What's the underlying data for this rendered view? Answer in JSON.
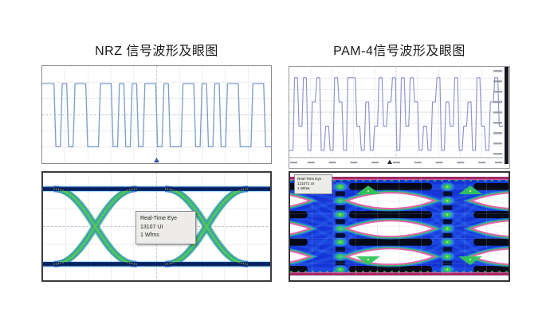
{
  "page": {
    "background": "#ffffff"
  },
  "panels": {
    "nrz": {
      "title": "NRZ 信号波形及眼图",
      "eye_tooltip": {
        "line1": "Real-Time Eye",
        "line2": "13107 UI",
        "line3": "1 Wfms"
      }
    },
    "pam4": {
      "title": "PAM-4信号波形及眼图",
      "eye_label": {
        "line1": "Real-Time Eye",
        "line2": "131071 UI",
        "line3": "1 Wfms"
      }
    }
  },
  "chart_data": [
    {
      "id": "nrz-waveform",
      "type": "line",
      "title": "NRZ signal waveform (2-level oscilloscope trace)",
      "xlabel": "",
      "ylabel": "",
      "levels": [
        0,
        1
      ],
      "bits": [
        1,
        1,
        0,
        1,
        0,
        1,
        1,
        0,
        0,
        1,
        1,
        0,
        1,
        0,
        1,
        0,
        1,
        1,
        0,
        1,
        0,
        0,
        1,
        1,
        0,
        1,
        0,
        1,
        0,
        1,
        1,
        0,
        0,
        1,
        1,
        0
      ],
      "grid": {
        "cols": 10,
        "rows": 6,
        "grid_on": true
      },
      "line_color": "#7f9fc6",
      "trigger_marker_color": "#3a58aa"
    },
    {
      "id": "nrz-eye",
      "type": "heatmap",
      "title": "NRZ real-time eye diagram (two crossings)",
      "annotation": [
        "Real-Time Eye",
        "13107 UI",
        "1 Wfms"
      ],
      "rail_y_pct": [
        15,
        85
      ],
      "crossing_x_pct": [
        23,
        72
      ],
      "grid": {
        "cols": 10,
        "rows": 6,
        "grid_on": true
      },
      "colors": {
        "rail_core": "#081f55",
        "rail": "#0c2f7e",
        "edge_blue": "#1e63c8",
        "cyan": "#2fa8e0",
        "green": "#35bd62",
        "core_yellow": "#d6c93e"
      }
    },
    {
      "id": "pam4-waveform",
      "type": "line",
      "title": "PAM-4 signal waveform (4-level oscilloscope trace)",
      "xlabel": "",
      "ylabel": "",
      "levels": [
        0,
        1,
        2,
        3
      ],
      "symbols": [
        0,
        3,
        1,
        3,
        0,
        2,
        3,
        0,
        1,
        0,
        3,
        2,
        0,
        3,
        3,
        1,
        0,
        2,
        0,
        1,
        3,
        1,
        2,
        3,
        0,
        3,
        1,
        3,
        2,
        0,
        1,
        0,
        2,
        3,
        0,
        2,
        1,
        3,
        0,
        1,
        2,
        0,
        3,
        1,
        0,
        2,
        3,
        1
      ],
      "grid": {
        "cols": 10,
        "rows": 8,
        "grid_on": true
      },
      "line_color": "#8e92cc",
      "axis_bar_color": "#16161e",
      "tick_mark_color": "#8d93a0"
    },
    {
      "id": "pam4-eye",
      "type": "heatmap",
      "title": "PAM-4 real-time eye diagram (three stacked eye openings)",
      "annotation": [
        "Real-Time Eye",
        "131071 UI",
        "1 Wfms"
      ],
      "eye_row_y_pct": [
        26,
        52,
        78
      ],
      "lens_x_pct": [
        -11,
        46,
        103
      ],
      "crossing_x_pct": [
        23,
        72
      ],
      "level_y_pct": [
        13,
        39,
        64.5,
        90
      ],
      "grid": {
        "cols": 10,
        "rows": 8,
        "grid_on": true
      },
      "colors": {
        "field": "#1535d6",
        "streak": "#2a68f0",
        "dense": "#04060e",
        "lens_fill": "#ffffff",
        "lens_border": "#e75fb0",
        "lens_glow": "#2ec75a",
        "lens_outer": "#38b0e8",
        "band_red": "#c22643",
        "band_pink": "#ec5f9a",
        "speckle_green": "#2ec75a",
        "dot_yellow": "#e8e26a",
        "glow_cyan": "#35a8e8"
      }
    }
  ]
}
